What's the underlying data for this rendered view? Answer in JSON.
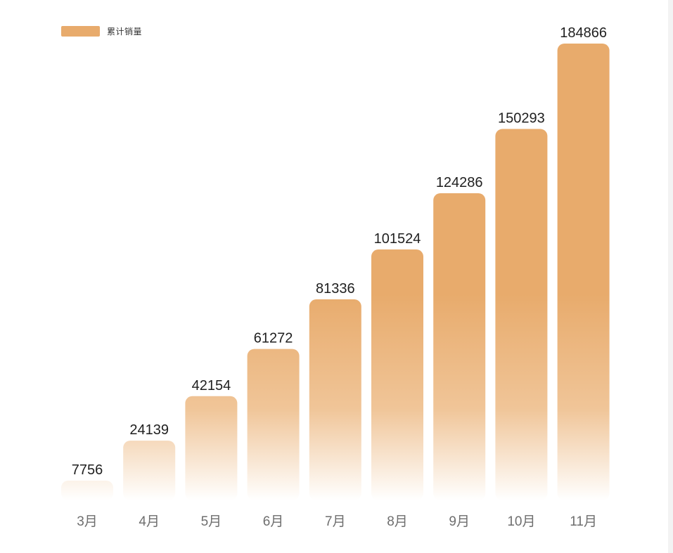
{
  "colors": {
    "bar_top": "#E8AB6C",
    "bar_mid": "#F0C598",
    "bar_bottom": "#FFFFFF",
    "value_text": "#1F1F1F",
    "category_text": "#6E6E6E"
  },
  "chart_data": {
    "type": "bar",
    "categories": [
      "3月",
      "4月",
      "5月",
      "6月",
      "7月",
      "8月",
      "9月",
      "10月",
      "11月"
    ],
    "series": [
      {
        "name": "累计销量",
        "values": [
          7756,
          24139,
          42154,
          61272,
          81336,
          101524,
          124286,
          150293,
          184866
        ]
      }
    ],
    "title": "",
    "xlabel": "",
    "ylabel": "",
    "legend_position": "top-left",
    "grid": false,
    "data_labels": true
  }
}
